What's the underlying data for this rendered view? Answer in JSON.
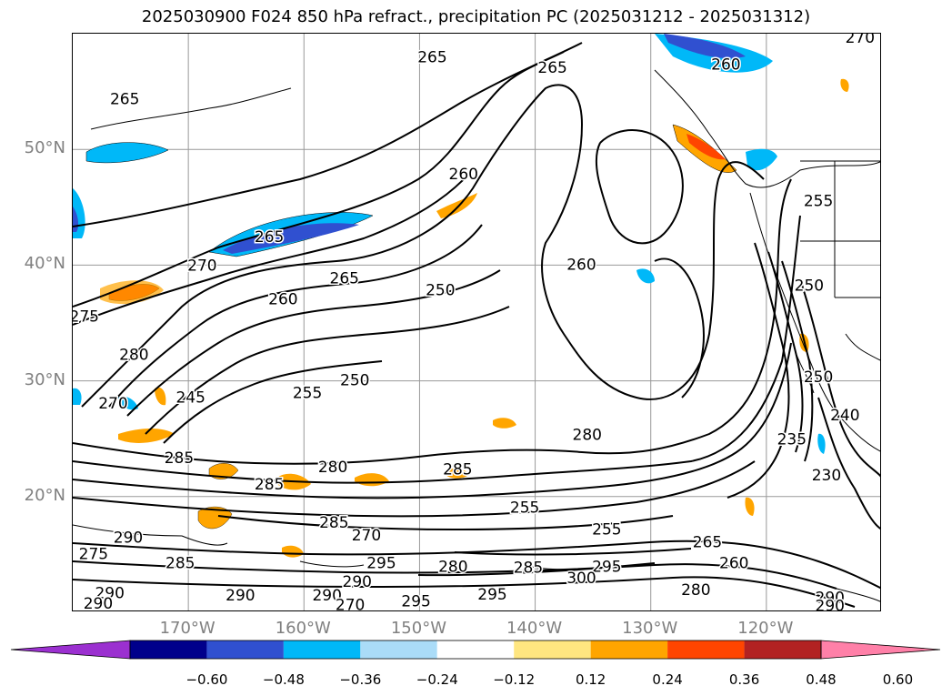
{
  "title": "2025030900 F024 850 hPa refract., precipitation PC (2025031212 - 2025031312)",
  "axes": {
    "lat_ticks": [
      "50°N",
      "40°N",
      "30°N",
      "20°N"
    ],
    "lon_ticks": [
      "170°W",
      "160°W",
      "150°W",
      "140°W",
      "130°W",
      "120°W"
    ]
  },
  "map_data": {
    "lon_range": [
      -180,
      -110
    ],
    "lat_range": [
      10,
      60
    ],
    "grid_lons": [
      -170,
      -160,
      -150,
      -140,
      -130,
      -120
    ],
    "grid_lats": [
      20,
      30,
      40,
      50
    ],
    "contour_labels": [
      {
        "text": "265",
        "lon": -148.9,
        "lat": 57.9
      },
      {
        "text": "265",
        "lon": -138.5,
        "lat": 57.0
      },
      {
        "text": "265",
        "lon": -175.5,
        "lat": 54.3
      },
      {
        "text": "270",
        "lon": -111.9,
        "lat": 59.6
      },
      {
        "text": "260",
        "lon": -123.5,
        "lat": 57.3
      },
      {
        "text": "260",
        "lon": -146.2,
        "lat": 47.8
      },
      {
        "text": "255",
        "lon": -115.5,
        "lat": 45.5
      },
      {
        "text": "265",
        "lon": -163.0,
        "lat": 42.4
      },
      {
        "text": "270",
        "lon": -168.8,
        "lat": 39.9
      },
      {
        "text": "265",
        "lon": -156.5,
        "lat": 38.8
      },
      {
        "text": "250",
        "lon": -148.2,
        "lat": 37.8
      },
      {
        "text": "260",
        "lon": -136.0,
        "lat": 40.0
      },
      {
        "text": "250",
        "lon": -116.3,
        "lat": 38.2
      },
      {
        "text": "275",
        "lon": -179.0,
        "lat": 35.5
      },
      {
        "text": "280",
        "lon": -174.7,
        "lat": 32.2
      },
      {
        "text": "260",
        "lon": -161.8,
        "lat": 37.0
      },
      {
        "text": "270",
        "lon": -176.5,
        "lat": 28.0
      },
      {
        "text": "255",
        "lon": -159.7,
        "lat": 28.9
      },
      {
        "text": "250",
        "lon": -155.6,
        "lat": 30.0
      },
      {
        "text": "245",
        "lon": -169.8,
        "lat": 28.5
      },
      {
        "text": "250",
        "lon": -115.5,
        "lat": 30.3
      },
      {
        "text": "240",
        "lon": -113.2,
        "lat": 27.0
      },
      {
        "text": "235",
        "lon": -117.8,
        "lat": 24.9
      },
      {
        "text": "230",
        "lon": -114.8,
        "lat": 21.8
      },
      {
        "text": "285",
        "lon": -170.8,
        "lat": 23.3
      },
      {
        "text": "280",
        "lon": -135.5,
        "lat": 25.3
      },
      {
        "text": "285",
        "lon": -146.7,
        "lat": 22.3
      },
      {
        "text": "280",
        "lon": -157.5,
        "lat": 22.5
      },
      {
        "text": "285",
        "lon": -163.0,
        "lat": 21.0
      },
      {
        "text": "255",
        "lon": -140.9,
        "lat": 19.0
      },
      {
        "text": "255",
        "lon": -133.8,
        "lat": 17.1
      },
      {
        "text": "285",
        "lon": -157.4,
        "lat": 17.7
      },
      {
        "text": "270",
        "lon": -154.6,
        "lat": 16.6
      },
      {
        "text": "290",
        "lon": -175.2,
        "lat": 16.4
      },
      {
        "text": "275",
        "lon": -178.2,
        "lat": 15.0
      },
      {
        "text": "285",
        "lon": -170.7,
        "lat": 14.2
      },
      {
        "text": "265",
        "lon": -125.1,
        "lat": 16.0
      },
      {
        "text": "260",
        "lon": -122.8,
        "lat": 14.2
      },
      {
        "text": "295",
        "lon": -133.8,
        "lat": 13.9
      },
      {
        "text": "300",
        "lon": -136.0,
        "lat": 12.9
      },
      {
        "text": "285",
        "lon": -140.6,
        "lat": 13.8
      },
      {
        "text": "280",
        "lon": -147.1,
        "lat": 13.9
      },
      {
        "text": "295",
        "lon": -153.3,
        "lat": 14.2
      },
      {
        "text": "290",
        "lon": -155.4,
        "lat": 12.6
      },
      {
        "text": "280",
        "lon": -126.1,
        "lat": 11.9
      },
      {
        "text": "290",
        "lon": -165.5,
        "lat": 11.4
      },
      {
        "text": "295",
        "lon": -150.3,
        "lat": 10.9
      },
      {
        "text": "295",
        "lon": -143.7,
        "lat": 11.5
      },
      {
        "text": "290",
        "lon": -176.8,
        "lat": 11.6
      },
      {
        "text": "290",
        "lon": -177.8,
        "lat": 10.7
      },
      {
        "text": "290",
        "lon": -158.0,
        "lat": 11.4
      },
      {
        "text": "270",
        "lon": -156.0,
        "lat": 10.6
      },
      {
        "text": "290",
        "lon": -114.5,
        "lat": 11.2
      },
      {
        "text": "290",
        "lon": -114.5,
        "lat": 10.5
      }
    ]
  },
  "colorbar": {
    "colors": [
      "#9b30d0",
      "#00008b",
      "#3050d0",
      "#00b8f8",
      "#aadcf8",
      "#ffffff",
      "#ffe680",
      "#ffa500",
      "#ff4500",
      "#b22222",
      "#ff80a8"
    ],
    "tick_labels": [
      "−0.60",
      "−0.48",
      "−0.36",
      "−0.24",
      "−0.12",
      "0.12",
      "0.24",
      "0.36",
      "0.48",
      "0.60"
    ],
    "extend": "both"
  }
}
